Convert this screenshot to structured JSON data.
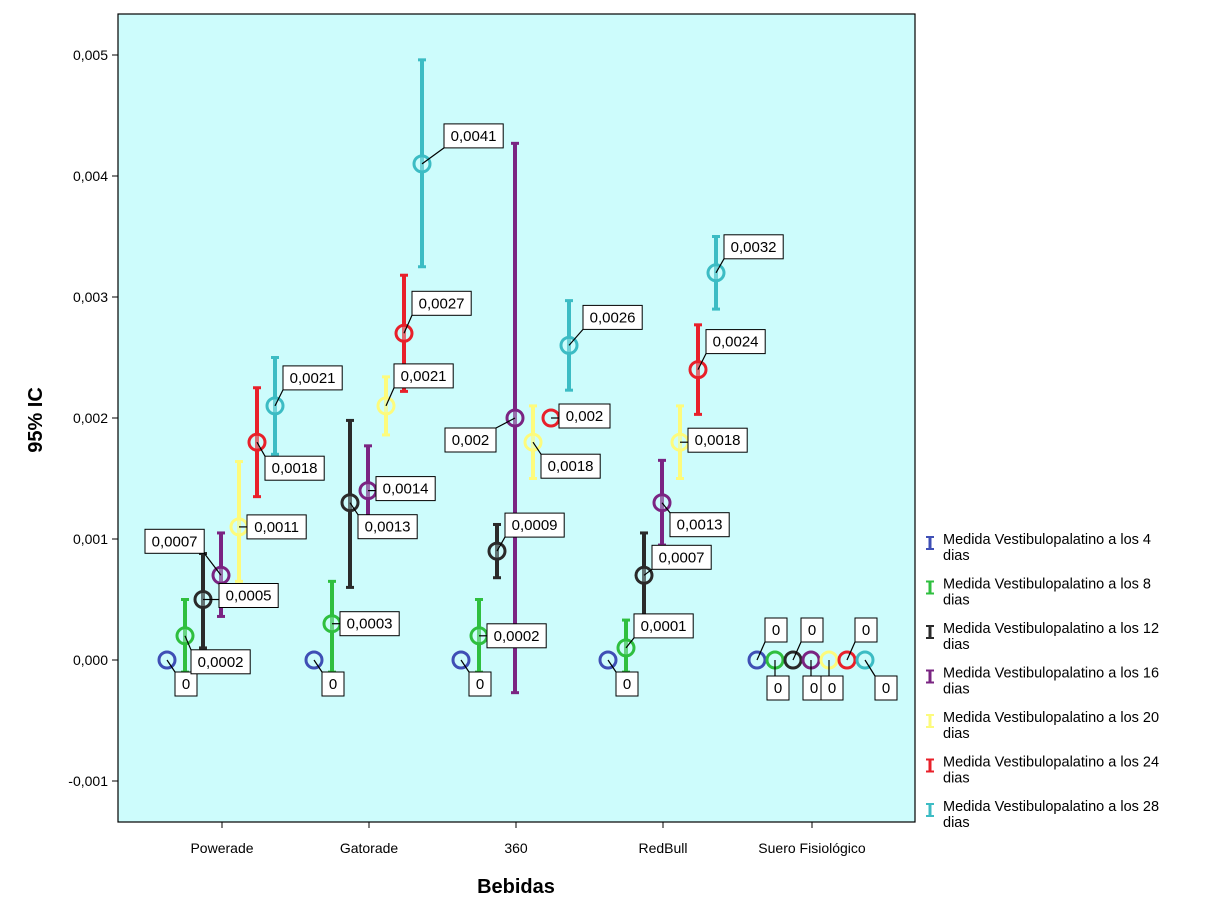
{
  "chart_data": {
    "type": "errorbar",
    "xlabel": "Bebidas",
    "ylabel": "95% IC",
    "ylim": [
      -0.0013,
      0.0053
    ],
    "yticks": [
      "-0,001",
      "0,000",
      "0,001",
      "0,002",
      "0,003",
      "0,004",
      "0,005"
    ],
    "categories": [
      "Powerade",
      "Gatorade",
      "360",
      "RedBull",
      "Suero Fisiológico"
    ],
    "plot_background": "#cdfcfc",
    "legend_position": "right",
    "series": [
      {
        "name": "Medida Vestibulopalatino a los 4 dias",
        "color": "#3f4fb5",
        "mean": [
          0,
          0,
          0,
          0,
          0
        ],
        "lower": [
          0,
          0,
          0,
          0,
          0
        ],
        "upper": [
          0,
          0,
          0,
          0,
          0
        ],
        "labels": [
          "0",
          "0",
          "0",
          "0",
          "0"
        ]
      },
      {
        "name": "Medida Vestibulopalatino a los 8 dias",
        "color": "#2fbf3f",
        "mean": [
          0.0002,
          0.0003,
          0.0002,
          0.0001,
          0
        ],
        "lower": [
          -0.0001,
          -0.0001,
          -0.0001,
          -0.0001,
          0
        ],
        "upper": [
          0.0005,
          0.00065,
          0.0005,
          0.00033,
          0
        ],
        "labels": [
          "0,0002",
          "0,0003",
          "0,0002",
          "0,0001",
          "0"
        ]
      },
      {
        "name": "Medida Vestibulopalatino a los 12 dias",
        "color": "#2a2a2a",
        "mean": [
          0.0005,
          0.0013,
          0.0009,
          0.0007,
          0
        ],
        "lower": [
          0.0001,
          0.0006,
          0.00068,
          0.00035,
          0
        ],
        "upper": [
          0.00088,
          0.00198,
          0.00112,
          0.00105,
          0
        ],
        "labels": [
          "0,0005",
          "0,0013",
          "0,0009",
          "0,0007",
          "0"
        ]
      },
      {
        "name": "Medida Vestibulopalatino a los 16 dias",
        "color": "#7a2482",
        "mean": [
          0.0007,
          0.0014,
          0.002,
          0.0013,
          0
        ],
        "lower": [
          0.00036,
          0.00103,
          -0.00027,
          0.00095,
          0
        ],
        "upper": [
          0.00105,
          0.00177,
          0.00427,
          0.00165,
          0
        ],
        "labels": [
          "0,0007",
          "0,0014",
          "0,002",
          "0,0013",
          "0"
        ]
      },
      {
        "name": "Medida Vestibulopalatino a los 20 dias",
        "color": "#fdfb7c",
        "mean": [
          0.0011,
          0.0021,
          0.0018,
          0.0018,
          0
        ],
        "lower": [
          0.00065,
          0.00186,
          0.0015,
          0.0015,
          0
        ],
        "upper": [
          0.00164,
          0.00234,
          0.0021,
          0.0021,
          0
        ],
        "labels": [
          "0,0011",
          "0,0021",
          "0,0018",
          "0,0018",
          "0"
        ]
      },
      {
        "name": "Medida Vestibulopalatino a los 24 dias",
        "color": "#e8202a",
        "mean": [
          0.0018,
          0.0027,
          0.002,
          0.0024,
          0
        ],
        "lower": [
          0.00135,
          0.00222,
          0.002,
          0.00203,
          0
        ],
        "upper": [
          0.00225,
          0.00318,
          0.002,
          0.00277,
          0
        ],
        "labels": [
          "0,0018",
          "0,0027",
          "0,002",
          "0,0024",
          "0"
        ]
      },
      {
        "name": "Medida Vestibulopalatino a los 28 dias",
        "color": "#3cbcc4",
        "mean": [
          0.0021,
          0.0041,
          0.0026,
          0.0032,
          0
        ],
        "lower": [
          0.0017,
          0.00325,
          0.00223,
          0.0029,
          0
        ],
        "upper": [
          0.0025,
          0.00496,
          0.00297,
          0.0035,
          0
        ],
        "labels": [
          "0,0021",
          "0,0041",
          "0,0026",
          "0,0032",
          "0"
        ]
      }
    ]
  }
}
